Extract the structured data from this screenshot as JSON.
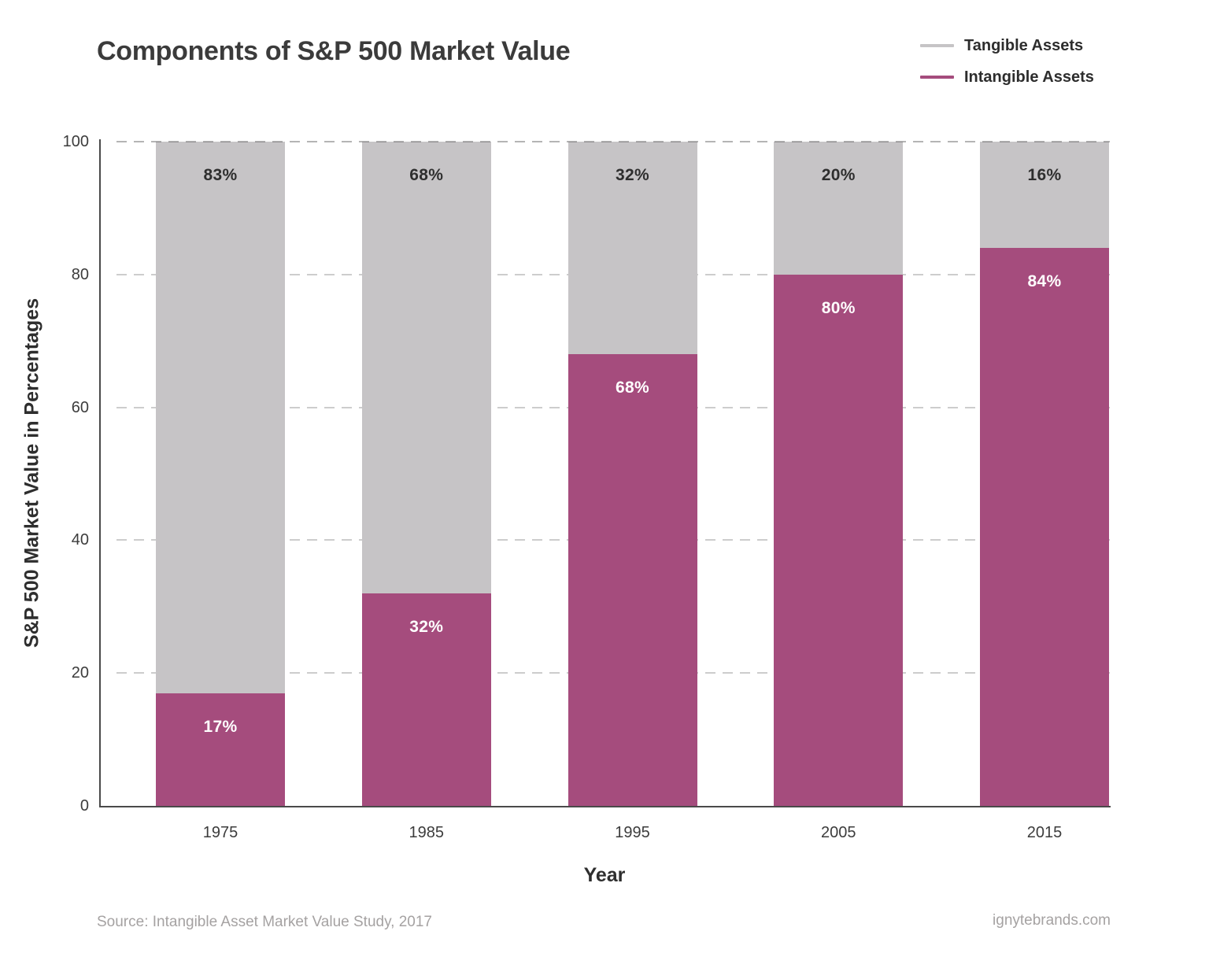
{
  "title": "Components of S&P 500 Market Value",
  "legend": {
    "items": [
      {
        "label": "Tangible Assets",
        "color": "#c6c4c6"
      },
      {
        "label": "Intangible Assets",
        "color": "#a54c7d"
      }
    ]
  },
  "chart_data": {
    "type": "bar",
    "stacked": true,
    "title": "Components of S&P 500 Market Value",
    "xlabel": "Year",
    "ylabel": "S&P 500 Market Value in Percentages",
    "categories": [
      "1975",
      "1985",
      "1995",
      "2005",
      "2015"
    ],
    "series": [
      {
        "name": "Intangible Assets",
        "color": "#a54c7d",
        "label_color": "#ffffff",
        "values": [
          17,
          32,
          68,
          80,
          84
        ]
      },
      {
        "name": "Tangible Assets",
        "color": "#c6c4c6",
        "label_color": "#2e2e2e",
        "values": [
          83,
          68,
          32,
          20,
          16
        ]
      }
    ],
    "value_suffix": "%",
    "ylim": [
      0,
      100
    ],
    "yticks": [
      0,
      20,
      40,
      60,
      80,
      100
    ],
    "grid": "dashed-horizontal",
    "legend_position": "top-right"
  },
  "footer": {
    "source": "Source: Intangible Asset Market Value Study, 2017",
    "site": "ignytebrands.com"
  }
}
